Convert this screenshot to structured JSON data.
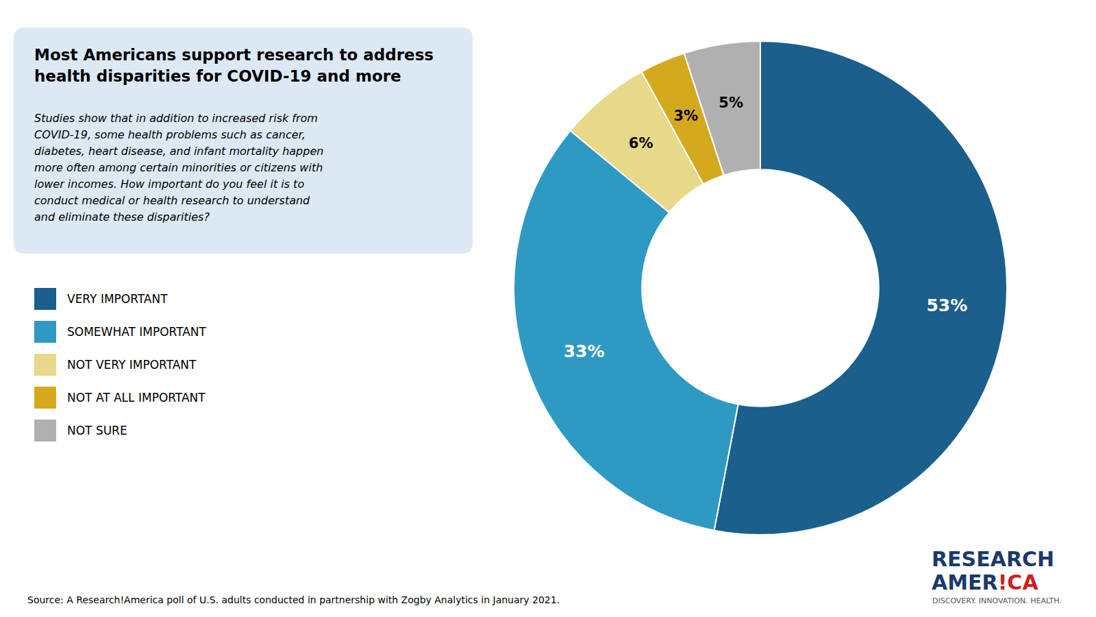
{
  "chart_data": {
    "type": "pie",
    "title": "Most Americans support research to address\nhealth disparities for COVID-19 and more",
    "subtitle": "Studies show that in addition to increased risk from\nCOVID-19, some health problems such as cancer,\ndiabetes, heart disease, and infant mortality happen\nmore often among certain minorities or citizens with\nlower incomes. How important do you feel it is to\nconduct medical or health research to understand\nand eliminate these disparities?",
    "categories": [
      "VERY IMPORTANT",
      "SOMEWHAT IMPORTANT",
      "NOT VERY IMPORTANT",
      "NOT AT ALL IMPORTANT",
      "NOT SURE"
    ],
    "values": [
      53,
      33,
      6,
      3,
      5
    ],
    "value_labels": [
      "53%",
      "33%",
      "6%",
      "3%",
      "5%"
    ],
    "colors": [
      "#1B5F8C",
      "#2E9AC4",
      "#E8D98A",
      "#D4A91E",
      "#B0B0B0"
    ],
    "data_labels": true,
    "legend": "lower left",
    "annotations": [
      {
        "text": "Source:  A Research!America poll of U.S. adults conducted in partnership with Zogby Analytics in January 2021."
      },
      {
        "text": "RESEARCH",
        "color": "#1B3A6B"
      },
      {
        "text": "AMER",
        "color": "#1B3A6B"
      },
      {
        "text": "!",
        "color": "#CC1F1F"
      },
      {
        "text": "CA",
        "color": "#CC1F1F"
      },
      {
        "text": "DISCOVERY. INNOVATION. HEALTH.",
        "color": "#555555"
      }
    ]
  }
}
